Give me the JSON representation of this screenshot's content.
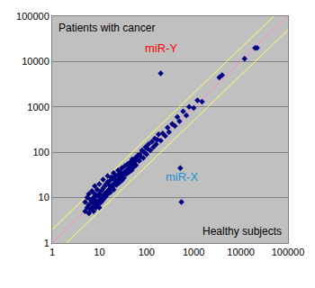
{
  "chart_data": {
    "type": "scatter",
    "log": true,
    "grid": "y",
    "xlim": [
      1,
      100000
    ],
    "ylim": [
      1,
      100000
    ],
    "xticks": [
      1,
      10,
      100,
      1000,
      10000,
      100000
    ],
    "yticks": [
      1,
      10,
      100,
      1000,
      10000,
      100000
    ],
    "annotations": [
      "Patients with cancer",
      "Healthy subjects"
    ],
    "series": [
      {
        "type": "line",
        "color": "#ff88cc",
        "x": [
          1,
          100000
        ],
        "values": [
          1,
          100000
        ]
      },
      {
        "type": "line",
        "color": "#ffff66",
        "x": [
          1,
          50000
        ],
        "values": [
          2,
          100000
        ]
      },
      {
        "type": "line",
        "color": "#ffff66",
        "x": [
          2,
          100000
        ],
        "values": [
          1,
          50000
        ]
      },
      {
        "type": "scatter",
        "color": "#000080",
        "marker": "diamond",
        "x": [
          5,
          5,
          5.5,
          5.5,
          6,
          6,
          6,
          6.5,
          6.5,
          7,
          7,
          7,
          7.5,
          7.5,
          8,
          8,
          8,
          8,
          8.5,
          9,
          9,
          9,
          9.5,
          10,
          10,
          10,
          10,
          11,
          11,
          11,
          12,
          12,
          12,
          12,
          13,
          13,
          13,
          14,
          14,
          14,
          15,
          15,
          15,
          15,
          16,
          16,
          17,
          17,
          17,
          18,
          18,
          19,
          20,
          20,
          20,
          20,
          22,
          22,
          23,
          25,
          25,
          25,
          26,
          28,
          28,
          30,
          30,
          30,
          32,
          33,
          35,
          35,
          37,
          40,
          40,
          42,
          45,
          45,
          48,
          50,
          50,
          52,
          55,
          58,
          60,
          62,
          65,
          70,
          72,
          75,
          80,
          85,
          90,
          95,
          100,
          105,
          110,
          120,
          130,
          140,
          150,
          160,
          170,
          180,
          200,
          220,
          250,
          280,
          300,
          350,
          400,
          450,
          500,
          600,
          700,
          800,
          1000,
          1200,
          1500,
          3500,
          4000,
          12000,
          20000,
          22000,
          520
        ],
        "values": [
          5,
          8,
          6,
          10,
          4.5,
          7,
          12,
          9,
          5.5,
          6,
          8,
          14,
          10,
          5,
          7,
          9,
          12,
          18,
          6,
          8,
          11,
          15,
          7,
          9,
          12,
          20,
          6,
          10,
          14,
          8,
          11,
          16,
          25,
          9,
          12,
          18,
          10,
          13,
          20,
          11,
          14,
          22,
          30,
          12,
          15,
          19,
          16,
          24,
          13,
          18,
          28,
          17,
          20,
          26,
          35,
          15,
          22,
          30,
          19,
          25,
          32,
          40,
          21,
          28,
          36,
          30,
          45,
          24,
          34,
          27,
          38,
          50,
          33,
          42,
          55,
          36,
          48,
          60,
          40,
          55,
          70,
          46,
          60,
          75,
          52,
          70,
          85,
          65,
          90,
          80,
          110,
          75,
          100,
          130,
          90,
          120,
          150,
          110,
          170,
          130,
          200,
          150,
          190,
          250,
          180,
          260,
          230,
          350,
          280,
          420,
          380,
          600,
          480,
          800,
          650,
          1000,
          950,
          1400,
          1300,
          4500,
          5000,
          11500,
          20000,
          20000,
          45
        ]
      }
    ],
    "highlights": [
      {
        "label": "miR-Y",
        "x": 200,
        "y": 5500,
        "color": "#ff0000"
      },
      {
        "label": "miR-X",
        "x": 550,
        "y": 8,
        "color": "#1e8fd6"
      }
    ]
  }
}
